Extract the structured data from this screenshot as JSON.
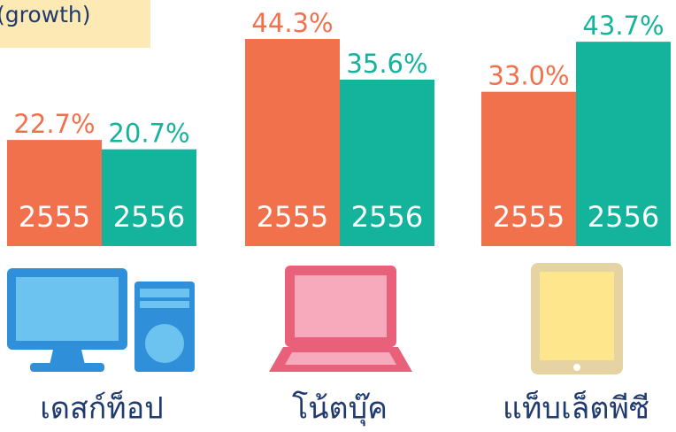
{
  "chart_data": {
    "type": "bar",
    "title": "(growth)",
    "categories": [
      "เดสก์ท็อป",
      "โน้ตบุ๊ค",
      "แท็บเล็ตพีซี"
    ],
    "series": [
      {
        "name": "2555",
        "color": "#f2714d",
        "values": [
          22.7,
          44.3,
          33.0
        ],
        "value_labels": [
          "22.7%",
          "44.3%",
          "33.0%"
        ]
      },
      {
        "name": "2556",
        "color": "#13b49b",
        "values": [
          20.7,
          35.6,
          43.7
        ],
        "value_labels": [
          "20.7%",
          "35.6%",
          "43.7%"
        ]
      }
    ],
    "ylim": [
      0,
      46
    ]
  }
}
